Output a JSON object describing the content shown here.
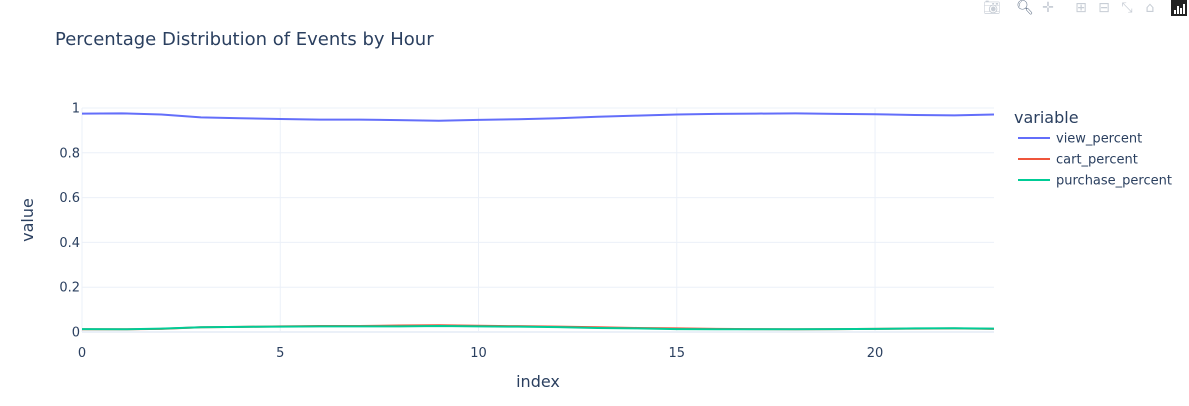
{
  "chart_data": {
    "type": "line",
    "title": "Percentage Distribution of Events by Hour",
    "xlabel": "index",
    "ylabel": "value",
    "xlim": [
      0,
      23
    ],
    "ylim": [
      0,
      1
    ],
    "x_ticks": [
      0,
      5,
      10,
      15,
      20
    ],
    "y_ticks": [
      0,
      0.2,
      0.4,
      0.6,
      0.8,
      1
    ],
    "grid": true,
    "legend_title": "variable",
    "legend_position": "right",
    "x": [
      0,
      1,
      2,
      3,
      4,
      5,
      6,
      7,
      8,
      9,
      10,
      11,
      12,
      13,
      14,
      15,
      16,
      17,
      18,
      19,
      20,
      21,
      22,
      23
    ],
    "series": [
      {
        "name": "view_percent",
        "color": "#636efa",
        "values": [
          0.975,
          0.976,
          0.971,
          0.958,
          0.954,
          0.951,
          0.948,
          0.948,
          0.946,
          0.943,
          0.947,
          0.95,
          0.954,
          0.961,
          0.966,
          0.971,
          0.974,
          0.975,
          0.976,
          0.974,
          0.972,
          0.969,
          0.967,
          0.971
        ]
      },
      {
        "name": "cart_percent",
        "color": "#ef553b",
        "values": [
          0.012,
          0.012,
          0.014,
          0.021,
          0.023,
          0.025,
          0.027,
          0.027,
          0.029,
          0.03,
          0.028,
          0.026,
          0.024,
          0.021,
          0.018,
          0.016,
          0.014,
          0.013,
          0.012,
          0.013,
          0.014,
          0.015,
          0.016,
          0.014
        ]
      },
      {
        "name": "purchase_percent",
        "color": "#00cc96",
        "values": [
          0.013,
          0.012,
          0.015,
          0.021,
          0.023,
          0.024,
          0.025,
          0.025,
          0.025,
          0.027,
          0.025,
          0.024,
          0.022,
          0.018,
          0.016,
          0.013,
          0.012,
          0.012,
          0.012,
          0.013,
          0.014,
          0.016,
          0.017,
          0.015
        ]
      }
    ]
  },
  "modebar": {
    "icons": [
      "camera-icon",
      "zoom-icon",
      "pan-icon",
      "zoom-in-icon",
      "zoom-out-icon",
      "autoscale-icon",
      "reset-axes-icon",
      "plotly-logo-icon"
    ]
  }
}
